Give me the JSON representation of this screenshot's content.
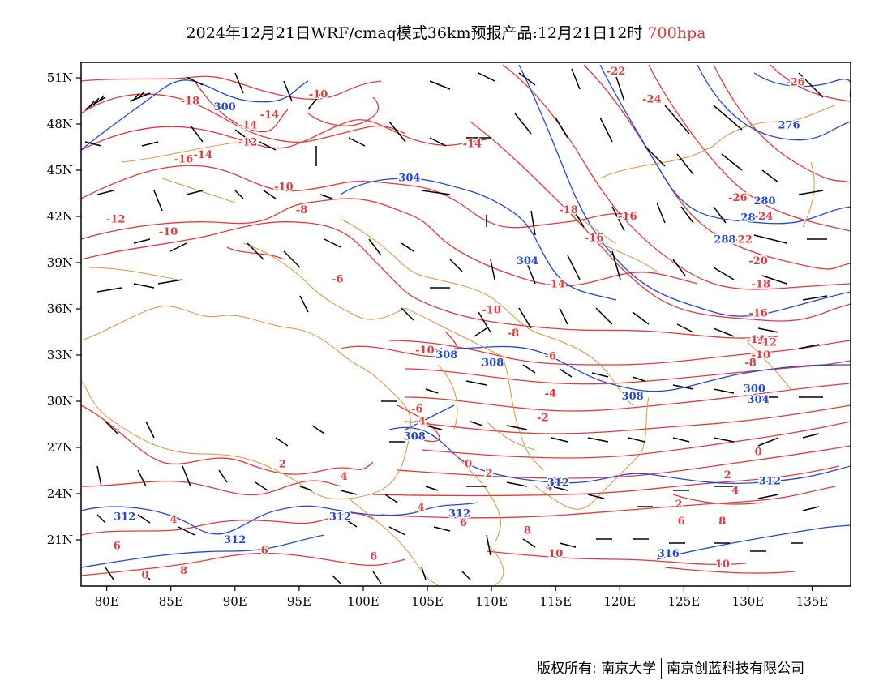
{
  "title": {
    "text": "2024年12月21日WRF/cmaq模式36km预报产品:12月21日12时",
    "level": "700hpa"
  },
  "colors": {
    "temperature": "#e8373a",
    "height": "#2146e0",
    "border": "#e0923a",
    "wind": "#000000",
    "level_text": "#e8373a"
  },
  "map": {
    "projection": "lat-lon",
    "lon_range": [
      78,
      138
    ],
    "lat_range": [
      18,
      52
    ],
    "lon_ticks": [
      {
        "value": 80,
        "label": "80E"
      },
      {
        "value": 85,
        "label": "85E"
      },
      {
        "value": 90,
        "label": "90E"
      },
      {
        "value": 95,
        "label": "95E"
      },
      {
        "value": 100,
        "label": "100E"
      },
      {
        "value": 105,
        "label": "105E"
      },
      {
        "value": 110,
        "label": "110E"
      },
      {
        "value": 115,
        "label": "115E"
      },
      {
        "value": 120,
        "label": "120E"
      },
      {
        "value": 125,
        "label": "125E"
      },
      {
        "value": 130,
        "label": "130E"
      },
      {
        "value": 135,
        "label": "135E"
      }
    ],
    "lat_ticks": [
      {
        "value": 51,
        "label": "51N"
      },
      {
        "value": 48,
        "label": "48N"
      },
      {
        "value": 45,
        "label": "45N"
      },
      {
        "value": 42,
        "label": "42N"
      },
      {
        "value": 39,
        "label": "39N"
      },
      {
        "value": 36,
        "label": "36N"
      },
      {
        "value": 33,
        "label": "33N"
      },
      {
        "value": 30,
        "label": "30N"
      },
      {
        "value": 27,
        "label": "27N"
      },
      {
        "value": 24,
        "label": "24N"
      },
      {
        "value": 21,
        "label": "21N"
      }
    ]
  },
  "temperature_labels": [
    {
      "lon": 86.5,
      "lat": 49.3,
      "text": "-18"
    },
    {
      "lon": 96.5,
      "lat": 49.7,
      "text": "-10"
    },
    {
      "lon": 91.0,
      "lat": 47.7,
      "text": "-14"
    },
    {
      "lon": 92.7,
      "lat": 48.4,
      "text": "-14"
    },
    {
      "lon": 91.0,
      "lat": 46.6,
      "text": "-12"
    },
    {
      "lon": 86.0,
      "lat": 45.5,
      "text": "-16"
    },
    {
      "lon": 87.5,
      "lat": 45.8,
      "text": "-14"
    },
    {
      "lon": 80.7,
      "lat": 41.6,
      "text": "-12"
    },
    {
      "lon": 84.8,
      "lat": 40.8,
      "text": "-10"
    },
    {
      "lon": 93.8,
      "lat": 43.7,
      "text": "-10"
    },
    {
      "lon": 95.2,
      "lat": 42.2,
      "text": "-8"
    },
    {
      "lon": 98.0,
      "lat": 37.7,
      "text": "-6"
    },
    {
      "lon": 108.5,
      "lat": 46.5,
      "text": "-14"
    },
    {
      "lon": 116.0,
      "lat": 42.2,
      "text": "-18"
    },
    {
      "lon": 120.6,
      "lat": 41.8,
      "text": "-16"
    },
    {
      "lon": 118.0,
      "lat": 40.4,
      "text": "-16"
    },
    {
      "lon": 119.7,
      "lat": 51.2,
      "text": "-22"
    },
    {
      "lon": 122.5,
      "lat": 49.4,
      "text": "-24"
    },
    {
      "lon": 129.2,
      "lat": 43.0,
      "text": "-26"
    },
    {
      "lon": 133.7,
      "lat": 50.5,
      "text": "-26"
    },
    {
      "lon": 131.2,
      "lat": 41.8,
      "text": "-24"
    },
    {
      "lon": 129.6,
      "lat": 40.3,
      "text": "-22"
    },
    {
      "lon": 130.8,
      "lat": 38.9,
      "text": "-20"
    },
    {
      "lon": 131.0,
      "lat": 37.4,
      "text": "-18"
    },
    {
      "lon": 130.8,
      "lat": 35.5,
      "text": "-16"
    },
    {
      "lon": 130.6,
      "lat": 33.8,
      "text": "-14"
    },
    {
      "lon": 131.5,
      "lat": 33.6,
      "text": "-12"
    },
    {
      "lon": 131.0,
      "lat": 32.8,
      "text": "-10"
    },
    {
      "lon": 130.2,
      "lat": 32.3,
      "text": "-8"
    },
    {
      "lon": 115.0,
      "lat": 37.4,
      "text": "-14"
    },
    {
      "lon": 110.0,
      "lat": 35.7,
      "text": "-10"
    },
    {
      "lon": 111.7,
      "lat": 34.2,
      "text": "-8"
    },
    {
      "lon": 114.6,
      "lat": 32.7,
      "text": "-6"
    },
    {
      "lon": 114.6,
      "lat": 30.3,
      "text": "-4"
    },
    {
      "lon": 114.0,
      "lat": 28.7,
      "text": "-2"
    },
    {
      "lon": 104.8,
      "lat": 33.1,
      "text": "-10"
    },
    {
      "lon": 104.2,
      "lat": 29.3,
      "text": "-6"
    },
    {
      "lon": 104.4,
      "lat": 28.5,
      "text": "-4"
    },
    {
      "lon": 108.2,
      "lat": 25.7,
      "text": "0"
    },
    {
      "lon": 109.8,
      "lat": 25.1,
      "text": "2"
    },
    {
      "lon": 93.7,
      "lat": 25.7,
      "text": "2"
    },
    {
      "lon": 98.5,
      "lat": 24.9,
      "text": "4"
    },
    {
      "lon": 104.5,
      "lat": 22.9,
      "text": "4"
    },
    {
      "lon": 114.5,
      "lat": 24.2,
      "text": "4"
    },
    {
      "lon": 129.0,
      "lat": 24.0,
      "text": "4"
    },
    {
      "lon": 130.8,
      "lat": 26.5,
      "text": "0"
    },
    {
      "lon": 128.4,
      "lat": 25.0,
      "text": "2"
    },
    {
      "lon": 124.6,
      "lat": 23.1,
      "text": "2"
    },
    {
      "lon": 124.8,
      "lat": 22.0,
      "text": "6"
    },
    {
      "lon": 128.0,
      "lat": 22.0,
      "text": "8"
    },
    {
      "lon": 107.8,
      "lat": 21.9,
      "text": "6"
    },
    {
      "lon": 112.8,
      "lat": 21.4,
      "text": "8"
    },
    {
      "lon": 115.0,
      "lat": 19.9,
      "text": "10"
    },
    {
      "lon": 128.0,
      "lat": 19.2,
      "text": "10"
    },
    {
      "lon": 100.8,
      "lat": 19.7,
      "text": "6"
    },
    {
      "lon": 80.8,
      "lat": 20.4,
      "text": "6"
    },
    {
      "lon": 83.0,
      "lat": 18.5,
      "text": "0"
    },
    {
      "lon": 86.0,
      "lat": 18.8,
      "text": "8"
    },
    {
      "lon": 92.3,
      "lat": 20.1,
      "text": "6"
    },
    {
      "lon": 85.2,
      "lat": 22.1,
      "text": "4"
    }
  ],
  "height_labels": [
    {
      "lon": 89.2,
      "lat": 48.9,
      "text": "300"
    },
    {
      "lon": 103.6,
      "lat": 44.3,
      "text": "304"
    },
    {
      "lon": 112.8,
      "lat": 38.9,
      "text": "304"
    },
    {
      "lon": 106.5,
      "lat": 32.8,
      "text": "308"
    },
    {
      "lon": 110.1,
      "lat": 32.3,
      "text": "308"
    },
    {
      "lon": 104.0,
      "lat": 27.5,
      "text": "308"
    },
    {
      "lon": 121.0,
      "lat": 30.1,
      "text": "308"
    },
    {
      "lon": 115.2,
      "lat": 24.5,
      "text": "312"
    },
    {
      "lon": 107.5,
      "lat": 22.5,
      "text": "312"
    },
    {
      "lon": 98.2,
      "lat": 22.3,
      "text": "312"
    },
    {
      "lon": 81.4,
      "lat": 22.3,
      "text": "312"
    },
    {
      "lon": 90.0,
      "lat": 20.8,
      "text": "312"
    },
    {
      "lon": 130.5,
      "lat": 30.6,
      "text": "300"
    },
    {
      "lon": 130.8,
      "lat": 29.9,
      "text": "304"
    },
    {
      "lon": 131.7,
      "lat": 24.6,
      "text": "312"
    },
    {
      "lon": 123.8,
      "lat": 19.9,
      "text": "316"
    },
    {
      "lon": 131.3,
      "lat": 42.8,
      "text": "280"
    },
    {
      "lon": 133.2,
      "lat": 47.7,
      "text": "276"
    },
    {
      "lon": 130.0,
      "lat": 41.7,
      "text": "28"
    },
    {
      "lon": 128.2,
      "lat": 40.3,
      "text": "288"
    }
  ]
}
